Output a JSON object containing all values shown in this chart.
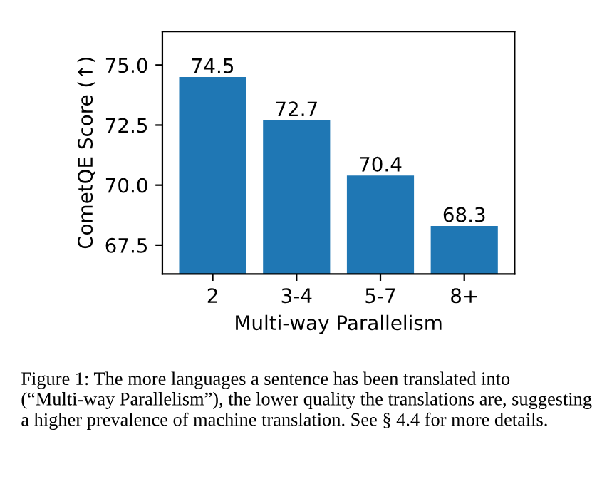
{
  "chart_data": {
    "type": "bar",
    "categories": [
      "2",
      "3-4",
      "5-7",
      "8+"
    ],
    "values": [
      74.5,
      72.7,
      70.4,
      68.3
    ],
    "color": "#1f77b4",
    "xlabel": "Multi-way Parallelism",
    "ylabel": "CometQE Score (↑)",
    "ylim": [
      66.3,
      76.4
    ],
    "yticks": [
      {
        "value": 67.5,
        "label": "67.5"
      },
      {
        "value": 70,
        "label": "70.0"
      },
      {
        "value": 72.5,
        "label": "72.5"
      },
      {
        "value": 75,
        "label": "75.0"
      }
    ],
    "data_labels": true,
    "grid": false,
    "annotations": [
      "Figure 1: The more languages a sentence has been translated into (“Multi-way Parallelism”), the lower quality the translations are, suggesting a higher prevalence of machine translation. See § 4.4 for more details."
    ]
  }
}
